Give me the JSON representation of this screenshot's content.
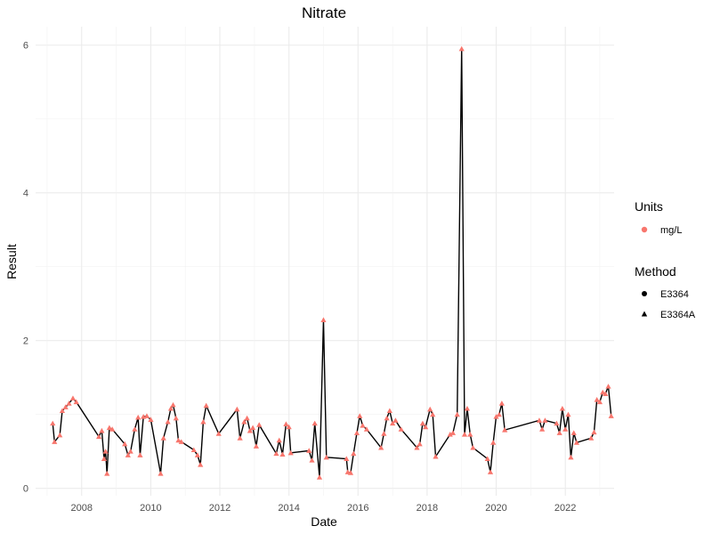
{
  "chart_data": {
    "type": "line",
    "title": "Nitrate",
    "xlabel": "Date",
    "ylabel": "Result",
    "x_axis_type": "date",
    "xlim": [
      "2006-09-01",
      "2023-06-01"
    ],
    "ylim": [
      -0.1,
      6.25
    ],
    "x_ticks": [
      "2008",
      "2010",
      "2012",
      "2014",
      "2016",
      "2018",
      "2020",
      "2022"
    ],
    "y_ticks": [
      "0",
      "2",
      "4",
      "6"
    ],
    "grid": true,
    "line_color": "#000000",
    "marker_color": "#f8766d",
    "legend": {
      "placement": "right",
      "groups": [
        {
          "title": "Units",
          "entries": [
            {
              "label": "mg/L",
              "shape": "circle",
              "color": "#f8766d"
            }
          ]
        },
        {
          "title": "Method",
          "entries": [
            {
              "label": "E3364",
              "shape": "circle",
              "color": "#000000"
            },
            {
              "label": "E3364A",
              "shape": "triangle",
              "color": "#000000"
            }
          ]
        }
      ]
    },
    "series": [
      {
        "units": "mg/L",
        "method": "E3364A",
        "points": [
          [
            "2007-03-01",
            0.88
          ],
          [
            "2007-03-20",
            0.63
          ],
          [
            "2007-05-15",
            0.72
          ],
          [
            "2007-06-10",
            1.05
          ],
          [
            "2007-07-15",
            1.1
          ],
          [
            "2007-08-20",
            1.15
          ],
          [
            "2007-10-01",
            1.22
          ],
          [
            "2007-11-05",
            1.17
          ],
          [
            "2008-07-01",
            0.7
          ],
          [
            "2008-08-01",
            0.78
          ],
          [
            "2008-08-25",
            0.4
          ],
          [
            "2008-09-10",
            0.5
          ],
          [
            "2008-09-25",
            0.2
          ],
          [
            "2008-10-20",
            0.82
          ],
          [
            "2008-11-20",
            0.8
          ],
          [
            "2009-04-01",
            0.6
          ],
          [
            "2009-05-05",
            0.45
          ],
          [
            "2009-06-01",
            0.5
          ],
          [
            "2009-07-15",
            0.8
          ],
          [
            "2009-08-20",
            0.96
          ],
          [
            "2009-09-10",
            0.45
          ],
          [
            "2009-10-15",
            0.97
          ],
          [
            "2009-11-20",
            0.98
          ],
          [
            "2010-01-01",
            0.93
          ],
          [
            "2010-04-15",
            0.2
          ],
          [
            "2010-05-15",
            0.68
          ],
          [
            "2010-07-01",
            0.9
          ],
          [
            "2010-08-01",
            1.08
          ],
          [
            "2010-08-25",
            1.13
          ],
          [
            "2010-09-25",
            0.95
          ],
          [
            "2010-10-20",
            0.65
          ],
          [
            "2010-11-20",
            0.63
          ],
          [
            "2011-04-01",
            0.52
          ],
          [
            "2011-05-10",
            0.45
          ],
          [
            "2011-06-10",
            0.32
          ],
          [
            "2011-07-10",
            0.9
          ],
          [
            "2011-08-10",
            1.12
          ],
          [
            "2011-12-20",
            0.74
          ],
          [
            "2012-07-01",
            1.07
          ],
          [
            "2012-08-01",
            0.68
          ],
          [
            "2012-09-15",
            0.9
          ],
          [
            "2012-10-15",
            0.95
          ],
          [
            "2012-11-15",
            0.78
          ],
          [
            "2012-12-15",
            0.82
          ],
          [
            "2013-01-20",
            0.57
          ],
          [
            "2013-02-20",
            0.86
          ],
          [
            "2013-08-20",
            0.47
          ],
          [
            "2013-09-20",
            0.65
          ],
          [
            "2013-10-25",
            0.46
          ],
          [
            "2013-12-01",
            0.87
          ],
          [
            "2014-01-01",
            0.83
          ],
          [
            "2014-01-20",
            0.48
          ],
          [
            "2014-08-01",
            0.51
          ],
          [
            "2014-09-01",
            0.38
          ],
          [
            "2014-10-01",
            0.88
          ],
          [
            "2014-11-20",
            0.15
          ],
          [
            "2015-01-01",
            2.28
          ],
          [
            "2015-02-01",
            0.42
          ],
          [
            "2015-09-01",
            0.4
          ],
          [
            "2015-09-15",
            0.22
          ],
          [
            "2015-10-15",
            0.21
          ],
          [
            "2015-11-15",
            0.47
          ],
          [
            "2015-12-20",
            0.75
          ],
          [
            "2016-01-20",
            0.98
          ],
          [
            "2016-02-20",
            0.85
          ],
          [
            "2016-04-01",
            0.8
          ],
          [
            "2016-09-01",
            0.55
          ],
          [
            "2016-10-01",
            0.74
          ],
          [
            "2016-11-01",
            0.95
          ],
          [
            "2016-12-01",
            1.05
          ],
          [
            "2017-01-01",
            0.88
          ],
          [
            "2017-02-01",
            0.92
          ],
          [
            "2017-04-01",
            0.8
          ],
          [
            "2017-09-15",
            0.55
          ],
          [
            "2017-10-15",
            0.6
          ],
          [
            "2017-11-15",
            0.88
          ],
          [
            "2017-12-15",
            0.83
          ],
          [
            "2018-02-01",
            1.07
          ],
          [
            "2018-03-01",
            1.0
          ],
          [
            "2018-04-01",
            0.43
          ],
          [
            "2018-09-01",
            0.73
          ],
          [
            "2018-10-01",
            0.75
          ],
          [
            "2018-11-15",
            1.0
          ],
          [
            "2019-01-01",
            5.95
          ],
          [
            "2019-02-01",
            0.73
          ],
          [
            "2019-03-01",
            1.08
          ],
          [
            "2019-04-01",
            0.73
          ],
          [
            "2019-05-01",
            0.55
          ],
          [
            "2019-10-01",
            0.4
          ],
          [
            "2019-11-01",
            0.22
          ],
          [
            "2019-12-01",
            0.62
          ],
          [
            "2020-01-01",
            0.97
          ],
          [
            "2020-02-01",
            1.0
          ],
          [
            "2020-03-01",
            1.15
          ],
          [
            "2020-04-01",
            0.79
          ],
          [
            "2021-04-01",
            0.92
          ],
          [
            "2021-05-01",
            0.8
          ],
          [
            "2021-06-01",
            0.92
          ],
          [
            "2021-10-01",
            0.88
          ],
          [
            "2021-11-01",
            0.75
          ],
          [
            "2021-12-01",
            1.08
          ],
          [
            "2022-01-01",
            0.8
          ],
          [
            "2022-02-01",
            1.0
          ],
          [
            "2022-03-01",
            0.42
          ],
          [
            "2022-04-01",
            0.75
          ],
          [
            "2022-05-01",
            0.62
          ],
          [
            "2022-10-01",
            0.68
          ],
          [
            "2022-11-01",
            0.76
          ],
          [
            "2022-12-01",
            1.2
          ],
          [
            "2023-01-01",
            1.17
          ],
          [
            "2023-02-01",
            1.3
          ],
          [
            "2023-03-01",
            1.28
          ],
          [
            "2023-04-01",
            1.38
          ],
          [
            "2023-05-01",
            0.98
          ]
        ]
      }
    ]
  }
}
